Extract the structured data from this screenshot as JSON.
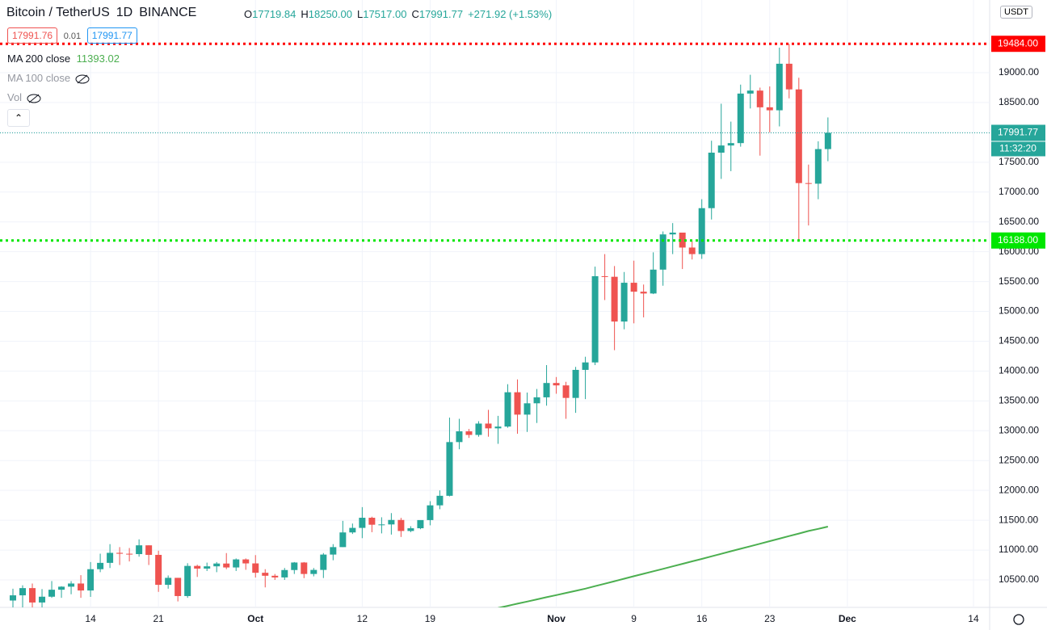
{
  "chart_data": {
    "type": "candlestick",
    "header": {
      "symbol": "Bitcoin / TetherUS",
      "interval": "1D",
      "exchange": "BINANCE",
      "o_label": "O",
      "o": "17719.84",
      "h_label": "H",
      "h": "18250.00",
      "l_label": "L",
      "l": "17517.00",
      "c_label": "C",
      "c": "17991.77",
      "change": "+271.92 (+1.53%)",
      "bid": "17991.76",
      "spread": "0.01",
      "ask": "17991.77",
      "ma200": "MA 200 close",
      "ma200_value": "11393.02",
      "ma100": "MA 100 close",
      "vol": "Vol",
      "currency": "USDT"
    },
    "x": [
      "09-06",
      "09-07",
      "09-08",
      "09-09",
      "09-10",
      "09-11",
      "09-12",
      "09-13",
      "09-14",
      "09-15",
      "09-16",
      "09-17",
      "09-18",
      "09-19",
      "09-20",
      "09-21",
      "09-22",
      "09-23",
      "09-24",
      "09-25",
      "09-26",
      "09-27",
      "09-28",
      "09-29",
      "09-30",
      "10-01",
      "10-02",
      "10-03",
      "10-04",
      "10-05",
      "10-06",
      "10-07",
      "10-08",
      "10-09",
      "10-10",
      "10-11",
      "10-12",
      "10-13",
      "10-14",
      "10-15",
      "10-16",
      "10-17",
      "10-18",
      "10-19",
      "10-20",
      "10-21",
      "10-22",
      "10-23",
      "10-24",
      "10-25",
      "10-26",
      "10-27",
      "10-28",
      "10-29",
      "10-30",
      "10-31",
      "11-01",
      "11-02",
      "11-03",
      "11-04",
      "11-05",
      "11-06",
      "11-07",
      "11-08",
      "11-09",
      "11-10",
      "11-11",
      "11-12",
      "11-13",
      "11-14",
      "11-15",
      "11-16",
      "11-17",
      "11-18",
      "11-19",
      "11-20",
      "11-21",
      "11-22",
      "11-23",
      "11-24",
      "11-25",
      "11-26",
      "11-27",
      "11-28",
      "11-29"
    ],
    "open": [
      10155,
      10242,
      10363,
      10122,
      10219,
      10336,
      10387,
      10440,
      10323,
      10680,
      10786,
      10954,
      10939,
      10933,
      11080,
      10920,
      10418,
      10535,
      10230,
      10735,
      10690,
      10728,
      10775,
      10709,
      10844,
      10777,
      10620,
      10570,
      10542,
      10666,
      10792,
      10600,
      10668,
      10925,
      11050,
      11296,
      11372,
      11542,
      11425,
      11430,
      11505,
      11320,
      11366,
      11503,
      11750,
      11910,
      12810,
      12990,
      12930,
      13120,
      13040,
      13070,
      13645,
      13270,
      13460,
      13560,
      13800,
      13760,
      13550,
      14020,
      14145,
      15590,
      15580,
      14830,
      15480,
      15330,
      15300,
      15700,
      16290,
      16320,
      16070,
      15960,
      16730,
      17660,
      17780,
      17820,
      18650,
      18700,
      18420,
      18370,
      19150,
      18720,
      17150,
      17140,
      17719.84
    ],
    "high": [
      10353,
      10410,
      10440,
      10347,
      10481,
      10395,
      10480,
      10580,
      10800,
      10940,
      11100,
      11050,
      11035,
      11180,
      11080,
      10990,
      10575,
      10535,
      10780,
      10755,
      10790,
      10800,
      10950,
      10860,
      10860,
      10916,
      10680,
      10600,
      10700,
      10800,
      10800,
      10700,
      10950,
      11100,
      11490,
      11445,
      11720,
      11560,
      11550,
      11620,
      11540,
      11400,
      11500,
      11820,
      12000,
      13220,
      13200,
      13030,
      13160,
      13350,
      13250,
      13780,
      13860,
      13640,
      13700,
      14100,
      13900,
      13820,
      14070,
      14240,
      15750,
      15960,
      15760,
      15660,
      15850,
      15450,
      15990,
      16340,
      16480,
      16320,
      16180,
      16880,
      17860,
      18480,
      18180,
      18800,
      18965,
      18750,
      18770,
      19420,
      19484,
      18915,
      17460,
      17850,
      18250
    ],
    "low": [
      9880,
      9875,
      9850,
      10000,
      10200,
      10200,
      10260,
      10200,
      10216,
      10630,
      10700,
      10750,
      10810,
      10890,
      10750,
      10300,
      10353,
      10140,
      10200,
      10550,
      10650,
      10630,
      10680,
      10650,
      10670,
      10540,
      10375,
      10500,
      10500,
      10600,
      10530,
      10560,
      10532,
      10830,
      11050,
      11270,
      11200,
      11300,
      11280,
      11260,
      11220,
      11300,
      11350,
      11415,
      11685,
      11900,
      12690,
      12880,
      12900,
      12900,
      12780,
      13050,
      12950,
      12980,
      13130,
      13420,
      13620,
      13200,
      13300,
      13530,
      14100,
      15190,
      14350,
      14700,
      14800,
      14900,
      15290,
      15430,
      15960,
      15710,
      15870,
      15880,
      16540,
      17220,
      17350,
      17760,
      18400,
      17610,
      18000,
      18100,
      18570,
      16188,
      16440,
      16880,
      17517
    ],
    "close": [
      10242,
      10363,
      10122,
      10219,
      10336,
      10387,
      10440,
      10323,
      10680,
      10786,
      10954,
      10939,
      10933,
      11080,
      10920,
      10418,
      10535,
      10230,
      10735,
      10690,
      10728,
      10775,
      10709,
      10844,
      10777,
      10620,
      10570,
      10542,
      10666,
      10792,
      10600,
      10668,
      10925,
      11050,
      11296,
      11372,
      11542,
      11425,
      11430,
      11505,
      11320,
      11366,
      11503,
      11750,
      11910,
      12810,
      12990,
      12930,
      13120,
      13040,
      13070,
      13645,
      13270,
      13460,
      13560,
      13800,
      13760,
      13550,
      14020,
      14145,
      15590,
      15580,
      14830,
      15480,
      15330,
      15300,
      15700,
      16290,
      16320,
      16070,
      15960,
      16730,
      17660,
      17780,
      17820,
      18650,
      18700,
      18420,
      18370,
      19150,
      18720,
      17150,
      17140,
      17719.84,
      17991.77
    ],
    "up_color": "#26a69a",
    "down_color": "#ef5350",
    "series": [
      {
        "name": "MA 200 close",
        "color": "#4caf50",
        "values": [
          null,
          null,
          null,
          null,
          null,
          null,
          null,
          null,
          null,
          null,
          null,
          null,
          null,
          null,
          null,
          null,
          null,
          null,
          null,
          null,
          null,
          null,
          null,
          null,
          null,
          null,
          null,
          null,
          null,
          null,
          null,
          null,
          null,
          null,
          null,
          null,
          null,
          null,
          null,
          null,
          null,
          null,
          null,
          null,
          null,
          null,
          null,
          null,
          null,
          null,
          10030,
          10066,
          10102,
          10138,
          10174,
          10210,
          10246,
          10282,
          10318,
          10354,
          10396,
          10437,
          10479,
          10520,
          10562,
          10603,
          10645,
          10686,
          10728,
          10769,
          10811,
          10852,
          10895,
          10937,
          10980,
          11022,
          11065,
          11107,
          11150,
          11192,
          11235,
          11277,
          11320,
          11355,
          11393.02
        ]
      }
    ],
    "hlines": [
      {
        "value": 19484,
        "label": "19484.00",
        "color": "#ff0000"
      },
      {
        "value": 16188,
        "label": "16188.00",
        "color": "#00e600"
      }
    ],
    "last_price": {
      "value": 17991.77,
      "countdown": "11:32:20",
      "color": "#26a69a"
    },
    "ylim": [
      10040,
      20218
    ],
    "yticks": [
      {
        "value": 10500,
        "label": "10500.00"
      },
      {
        "value": 11000,
        "label": "11000.00"
      },
      {
        "value": 11500,
        "label": "11500.00"
      },
      {
        "value": 12000,
        "label": "12000.00"
      },
      {
        "value": 12500,
        "label": "12500.00"
      },
      {
        "value": 13000,
        "label": "13000.00"
      },
      {
        "value": 13500,
        "label": "13500.00"
      },
      {
        "value": 14000,
        "label": "14000.00"
      },
      {
        "value": 14500,
        "label": "14500.00"
      },
      {
        "value": 15000,
        "label": "15000.00"
      },
      {
        "value": 15500,
        "label": "15500.00"
      },
      {
        "value": 16000,
        "label": "16000.00"
      },
      {
        "value": 16500,
        "label": "16500.00"
      },
      {
        "value": 17000,
        "label": "17000.00"
      },
      {
        "value": 17500,
        "label": "17500.00"
      },
      {
        "value": 18000,
        "label": "18000.00"
      },
      {
        "value": 18500,
        "label": "18500.00"
      },
      {
        "value": 19000,
        "label": "19000.00"
      }
    ],
    "xticks": [
      {
        "value": "09-14",
        "label": "14"
      },
      {
        "value": "09-21",
        "label": "21"
      },
      {
        "value": "10-01",
        "label": "Oct"
      },
      {
        "value": "10-12",
        "label": "12"
      },
      {
        "value": "10-19",
        "label": "19"
      },
      {
        "value": "11-01",
        "label": "Nov"
      },
      {
        "value": "11-09",
        "label": "9"
      },
      {
        "value": "11-16",
        "label": "16"
      },
      {
        "value": "11-23",
        "label": "23"
      },
      {
        "value": "12-01",
        "label": "Dec"
      },
      {
        "value": "12-14",
        "label": "14"
      }
    ],
    "grid": true
  }
}
